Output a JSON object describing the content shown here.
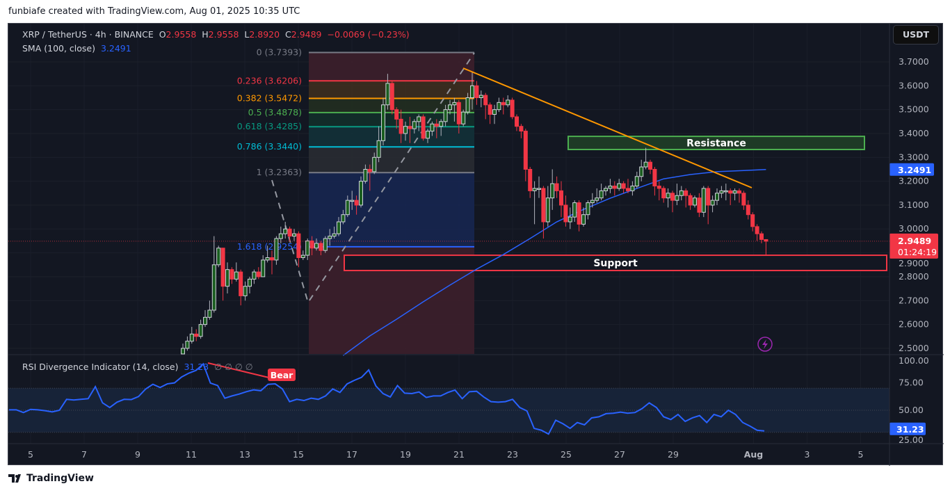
{
  "credit": "funbiafe created with TradingView.com, Aug 01, 2025 10:35 UTC",
  "legend": {
    "symbol": "XRP / TetherUS · 4h · BINANCE",
    "o_label": "O",
    "o": "2.9558",
    "h_label": "H",
    "h": "2.9558",
    "l_label": "L",
    "l": "2.8920",
    "c_label": "C",
    "c": "2.9489",
    "change": "−0.0069 (−0.23%)",
    "sma_label": "SMA (100, close)",
    "sma_value": "3.2491",
    "rsi_label": "RSI Divergence Indicator (14, close)",
    "rsi_value": "31.23",
    "rsi_extra": "∅ ∅ ∅ ∅"
  },
  "currency_button": "USDT",
  "footer": {
    "brand": "TradingView",
    "logo_icon": "tradingview-logo-icon"
  },
  "colors": {
    "background": "#131722",
    "up": "#1b5e20",
    "down": "#f23645",
    "sma": "#2962ff",
    "rsi": "#2962ff",
    "trendline": "#ff9800",
    "resistance": "#4caf50",
    "support": "#f23645",
    "alert_icon": "#9c27b0"
  },
  "chart_data": [
    {
      "type": "candlestick",
      "title": "XRP / TetherUS · 4h · BINANCE",
      "interval": "4h",
      "y_ticks": [
        "3.7000",
        "3.6000",
        "3.5000",
        "3.4000",
        "3.3000",
        "3.2000",
        "3.1000",
        "3.0000",
        "2.9000",
        "2.8000",
        "2.7000",
        "2.6000",
        "2.5000"
      ],
      "ylim": [
        2.5,
        3.74
      ],
      "x_ticks": [
        "5",
        "7",
        "9",
        "11",
        "13",
        "15",
        "17",
        "19",
        "21",
        "23",
        "25",
        "27",
        "29",
        "Aug",
        "3",
        "5"
      ],
      "last_price": "2.9489",
      "countdown": "01:24:19",
      "sma_axis_label": "3.2491",
      "candles_ohlc": [
        [
          2.47,
          2.52,
          2.46,
          2.5
        ],
        [
          2.5,
          2.55,
          2.49,
          2.53
        ],
        [
          2.53,
          2.59,
          2.52,
          2.56
        ],
        [
          2.56,
          2.58,
          2.53,
          2.55
        ],
        [
          2.55,
          2.62,
          2.54,
          2.6
        ],
        [
          2.6,
          2.66,
          2.59,
          2.63
        ],
        [
          2.63,
          2.7,
          2.62,
          2.66
        ],
        [
          2.66,
          2.97,
          2.65,
          2.85
        ],
        [
          2.85,
          2.93,
          2.84,
          2.92
        ],
        [
          2.92,
          2.92,
          2.7,
          2.76
        ],
        [
          2.76,
          2.86,
          2.73,
          2.83
        ],
        [
          2.83,
          2.84,
          2.77,
          2.79
        ],
        [
          2.79,
          2.86,
          2.78,
          2.82
        ],
        [
          2.82,
          2.83,
          2.68,
          2.72
        ],
        [
          2.72,
          2.78,
          2.7,
          2.76
        ],
        [
          2.76,
          2.8,
          2.73,
          2.79
        ],
        [
          2.79,
          2.83,
          2.77,
          2.82
        ],
        [
          2.82,
          2.84,
          2.79,
          2.8
        ],
        [
          2.8,
          2.89,
          2.8,
          2.87
        ],
        [
          2.87,
          2.93,
          2.86,
          2.88
        ],
        [
          2.88,
          2.91,
          2.81,
          2.87
        ],
        [
          2.87,
          2.97,
          2.85,
          2.96
        ],
        [
          2.96,
          3.01,
          2.94,
          2.98
        ],
        [
          2.98,
          3.03,
          2.96,
          3.0
        ],
        [
          3.0,
          3.01,
          2.95,
          2.97
        ],
        [
          2.97,
          3.0,
          2.95,
          2.98
        ],
        [
          2.98,
          2.99,
          2.84,
          2.88
        ],
        [
          2.88,
          2.91,
          2.87,
          2.89
        ],
        [
          2.89,
          2.96,
          2.87,
          2.95
        ],
        [
          2.95,
          2.97,
          2.89,
          2.92
        ],
        [
          2.92,
          2.96,
          2.91,
          2.94
        ],
        [
          2.94,
          2.95,
          2.89,
          2.91
        ],
        [
          2.91,
          2.97,
          2.9,
          2.96
        ],
        [
          2.96,
          3.0,
          2.93,
          2.97
        ],
        [
          2.97,
          3.01,
          2.96,
          2.98
        ],
        [
          2.98,
          3.05,
          2.97,
          3.03
        ],
        [
          3.03,
          3.08,
          3.02,
          3.06
        ],
        [
          3.06,
          3.14,
          3.05,
          3.12
        ],
        [
          3.12,
          3.16,
          3.08,
          3.12
        ],
        [
          3.12,
          3.14,
          3.06,
          3.1
        ],
        [
          3.1,
          3.22,
          3.09,
          3.2
        ],
        [
          3.2,
          3.27,
          3.19,
          3.25
        ],
        [
          3.25,
          3.27,
          3.16,
          3.24
        ],
        [
          3.24,
          3.32,
          3.23,
          3.3
        ],
        [
          3.3,
          3.43,
          3.28,
          3.37
        ],
        [
          3.37,
          3.55,
          3.35,
          3.52
        ],
        [
          3.52,
          3.65,
          3.5,
          3.61
        ],
        [
          3.61,
          3.62,
          3.48,
          3.5
        ],
        [
          3.5,
          3.51,
          3.42,
          3.46
        ],
        [
          3.46,
          3.5,
          3.36,
          3.4
        ],
        [
          3.4,
          3.45,
          3.37,
          3.43
        ],
        [
          3.43,
          3.47,
          3.36,
          3.42
        ],
        [
          3.42,
          3.46,
          3.4,
          3.45
        ],
        [
          3.45,
          3.48,
          3.41,
          3.47
        ],
        [
          3.47,
          3.48,
          3.37,
          3.38
        ],
        [
          3.38,
          3.42,
          3.36,
          3.41
        ],
        [
          3.41,
          3.45,
          3.39,
          3.44
        ],
        [
          3.44,
          3.46,
          3.38,
          3.43
        ],
        [
          3.43,
          3.46,
          3.39,
          3.45
        ],
        [
          3.45,
          3.52,
          3.43,
          3.5
        ],
        [
          3.5,
          3.54,
          3.48,
          3.52
        ],
        [
          3.52,
          3.55,
          3.45,
          3.53
        ],
        [
          3.53,
          3.54,
          3.4,
          3.44
        ],
        [
          3.44,
          3.5,
          3.43,
          3.49
        ],
        [
          3.49,
          3.57,
          3.48,
          3.55
        ],
        [
          3.55,
          3.66,
          3.5,
          3.6
        ],
        [
          3.6,
          3.62,
          3.52,
          3.55
        ],
        [
          3.55,
          3.58,
          3.51,
          3.56
        ],
        [
          3.56,
          3.57,
          3.46,
          3.52
        ],
        [
          3.52,
          3.53,
          3.44,
          3.48
        ],
        [
          3.48,
          3.52,
          3.44,
          3.5
        ],
        [
          3.5,
          3.55,
          3.49,
          3.53
        ],
        [
          3.53,
          3.55,
          3.48,
          3.52
        ],
        [
          3.52,
          3.56,
          3.51,
          3.54
        ],
        [
          3.54,
          3.55,
          3.46,
          3.47
        ],
        [
          3.47,
          3.48,
          3.41,
          3.43
        ],
        [
          3.43,
          3.44,
          3.38,
          3.41
        ],
        [
          3.41,
          3.42,
          3.2,
          3.25
        ],
        [
          3.25,
          3.26,
          3.13,
          3.16
        ],
        [
          3.16,
          3.2,
          3.02,
          3.17
        ],
        [
          3.17,
          3.22,
          3.13,
          3.17
        ],
        [
          3.17,
          3.18,
          2.96,
          3.03
        ],
        [
          3.03,
          3.18,
          3.01,
          3.13
        ],
        [
          3.13,
          3.25,
          3.08,
          3.19
        ],
        [
          3.19,
          3.22,
          3.13,
          3.16
        ],
        [
          3.16,
          3.2,
          3.05,
          3.1
        ],
        [
          3.1,
          3.14,
          3.01,
          3.03
        ],
        [
          3.03,
          3.09,
          3.0,
          3.05
        ],
        [
          3.05,
          3.12,
          3.03,
          3.11
        ],
        [
          3.11,
          3.12,
          2.99,
          3.02
        ],
        [
          3.02,
          3.09,
          3.01,
          3.06
        ],
        [
          3.06,
          3.12,
          3.04,
          3.11
        ],
        [
          3.11,
          3.15,
          3.09,
          3.12
        ],
        [
          3.12,
          3.17,
          3.11,
          3.13
        ],
        [
          3.13,
          3.19,
          3.12,
          3.16
        ],
        [
          3.16,
          3.18,
          3.14,
          3.17
        ],
        [
          3.17,
          3.21,
          3.15,
          3.18
        ],
        [
          3.18,
          3.2,
          3.14,
          3.17
        ],
        [
          3.17,
          3.21,
          3.16,
          3.19
        ],
        [
          3.19,
          3.2,
          3.15,
          3.17
        ],
        [
          3.17,
          3.21,
          3.15,
          3.16
        ],
        [
          3.16,
          3.2,
          3.14,
          3.18
        ],
        [
          3.18,
          3.24,
          3.17,
          3.22
        ],
        [
          3.22,
          3.29,
          3.2,
          3.26
        ],
        [
          3.26,
          3.34,
          3.25,
          3.28
        ],
        [
          3.28,
          3.29,
          3.23,
          3.25
        ],
        [
          3.25,
          3.26,
          3.14,
          3.18
        ],
        [
          3.18,
          3.2,
          3.12,
          3.17
        ],
        [
          3.17,
          3.18,
          3.11,
          3.13
        ],
        [
          3.13,
          3.17,
          3.09,
          3.15
        ],
        [
          3.15,
          3.16,
          3.07,
          3.12
        ],
        [
          3.12,
          3.19,
          3.1,
          3.14
        ],
        [
          3.14,
          3.18,
          3.12,
          3.16
        ],
        [
          3.16,
          3.17,
          3.09,
          3.14
        ],
        [
          3.14,
          3.15,
          3.08,
          3.1
        ],
        [
          3.1,
          3.14,
          3.09,
          3.13
        ],
        [
          3.13,
          3.15,
          3.05,
          3.07
        ],
        [
          3.07,
          3.18,
          3.05,
          3.17
        ],
        [
          3.17,
          3.18,
          3.02,
          3.1
        ],
        [
          3.1,
          3.14,
          3.07,
          3.12
        ],
        [
          3.12,
          3.17,
          3.1,
          3.15
        ],
        [
          3.15,
          3.18,
          3.13,
          3.16
        ],
        [
          3.16,
          3.19,
          3.12,
          3.16
        ],
        [
          3.16,
          3.17,
          3.1,
          3.15
        ],
        [
          3.15,
          3.17,
          3.12,
          3.16
        ],
        [
          3.16,
          3.17,
          3.11,
          3.15
        ],
        [
          3.15,
          3.16,
          3.08,
          3.1
        ],
        [
          3.1,
          3.12,
          3.04,
          3.06
        ],
        [
          3.06,
          3.07,
          2.99,
          3.01
        ],
        [
          3.01,
          3.02,
          2.95,
          2.98
        ],
        [
          2.98,
          2.99,
          2.94,
          2.956
        ],
        [
          2.9558,
          2.9558,
          2.892,
          2.9489
        ]
      ],
      "sma_100": {
        "label": "SMA (100, close)",
        "values": [
          2.47,
          2.552,
          2.622,
          2.695,
          2.765,
          2.832,
          2.893,
          2.96,
          3.03,
          3.082,
          3.129,
          3.17,
          3.21,
          3.228,
          3.24,
          3.245,
          3.2491
        ]
      },
      "fibonacci": [
        {
          "ratio": "0",
          "price": 3.7393,
          "label": "0 (3.7393)",
          "color": "#787b86",
          "fill": "#3d1f2b"
        },
        {
          "ratio": "0.236",
          "price": 3.6206,
          "label": "0.236 (3.6206)",
          "color": "#f23645",
          "fill": "#3e2d1f"
        },
        {
          "ratio": "0.382",
          "price": 3.5472,
          "label": "0.382 (3.5472)",
          "color": "#ff9800",
          "fill": "#222e20"
        },
        {
          "ratio": "0.5",
          "price": 3.4878,
          "label": "0.5 (3.4878)",
          "color": "#4caf50",
          "fill": "#132f2a"
        },
        {
          "ratio": "0.618",
          "price": 3.4285,
          "label": "0.618 (3.4285)",
          "color": "#089981",
          "fill": "#133138"
        },
        {
          "ratio": "0.786",
          "price": 3.344,
          "label": "0.786 (3.3440)",
          "color": "#00bcd4",
          "fill": "#292b32"
        },
        {
          "ratio": "1",
          "price": 3.2363,
          "label": "1 (3.2363)",
          "color": "#787b86",
          "fill": "#172650"
        },
        {
          "ratio": "1.618",
          "price": 2.9254,
          "label": "1.618 (2.9254)",
          "color": "#2962ff",
          "fill": "#3d1f2b"
        }
      ],
      "zones": [
        {
          "label": "Resistance",
          "top": 3.388,
          "bottom": 3.333,
          "color": "#4caf50"
        },
        {
          "label": "Support",
          "top": 2.89,
          "bottom": 2.826,
          "color": "#f23645"
        }
      ]
    },
    {
      "type": "line",
      "title": "RSI Divergence Indicator (14, close)",
      "ylim": [
        0,
        100
      ],
      "y_ticks": [
        "100.00",
        "75.00",
        "50.00",
        "25.00"
      ],
      "bands": [
        30,
        50,
        70
      ],
      "last_value": "31.23",
      "divergence_label": "Bear",
      "values": [
        50.4,
        50.4,
        47.9,
        50.8,
        50.4,
        49.6,
        48.5,
        50.0,
        59.9,
        59.3,
        59.9,
        60.5,
        71.4,
        56.7,
        52.5,
        57.3,
        59.9,
        59.7,
        62.4,
        69.3,
        73.5,
        70.6,
        73.9,
        74.8,
        80.2,
        83.6,
        86.1,
        92.0,
        74.6,
        72.4,
        60.9,
        63.0,
        64.7,
        66.8,
        68.5,
        67.7,
        73.5,
        73.9,
        69.3,
        57.8,
        59.9,
        58.8,
        60.9,
        59.9,
        63.0,
        69.3,
        66.1,
        73.9,
        77.1,
        79.8,
        86.5,
        72.0,
        65.1,
        62.0,
        72.4,
        65.5,
        65.1,
        66.6,
        61.6,
        63.0,
        63.0,
        66.1,
        68.3,
        60.5,
        66.8,
        67.2,
        62.0,
        57.8,
        57.3,
        57.8,
        59.9,
        52.5,
        49.4,
        33.6,
        31.9,
        28.4,
        41.0,
        37.8,
        33.6,
        38.9,
        36.8,
        43.1,
        44.1,
        46.9,
        47.3,
        48.3,
        47.3,
        47.9,
        51.5,
        56.7,
        52.5,
        44.1,
        41.6,
        46.2,
        39.9,
        43.1,
        45.2,
        38.9,
        46.2,
        44.1,
        50.0,
        46.2,
        38.9,
        35.7,
        31.9,
        31.23
      ]
    }
  ]
}
